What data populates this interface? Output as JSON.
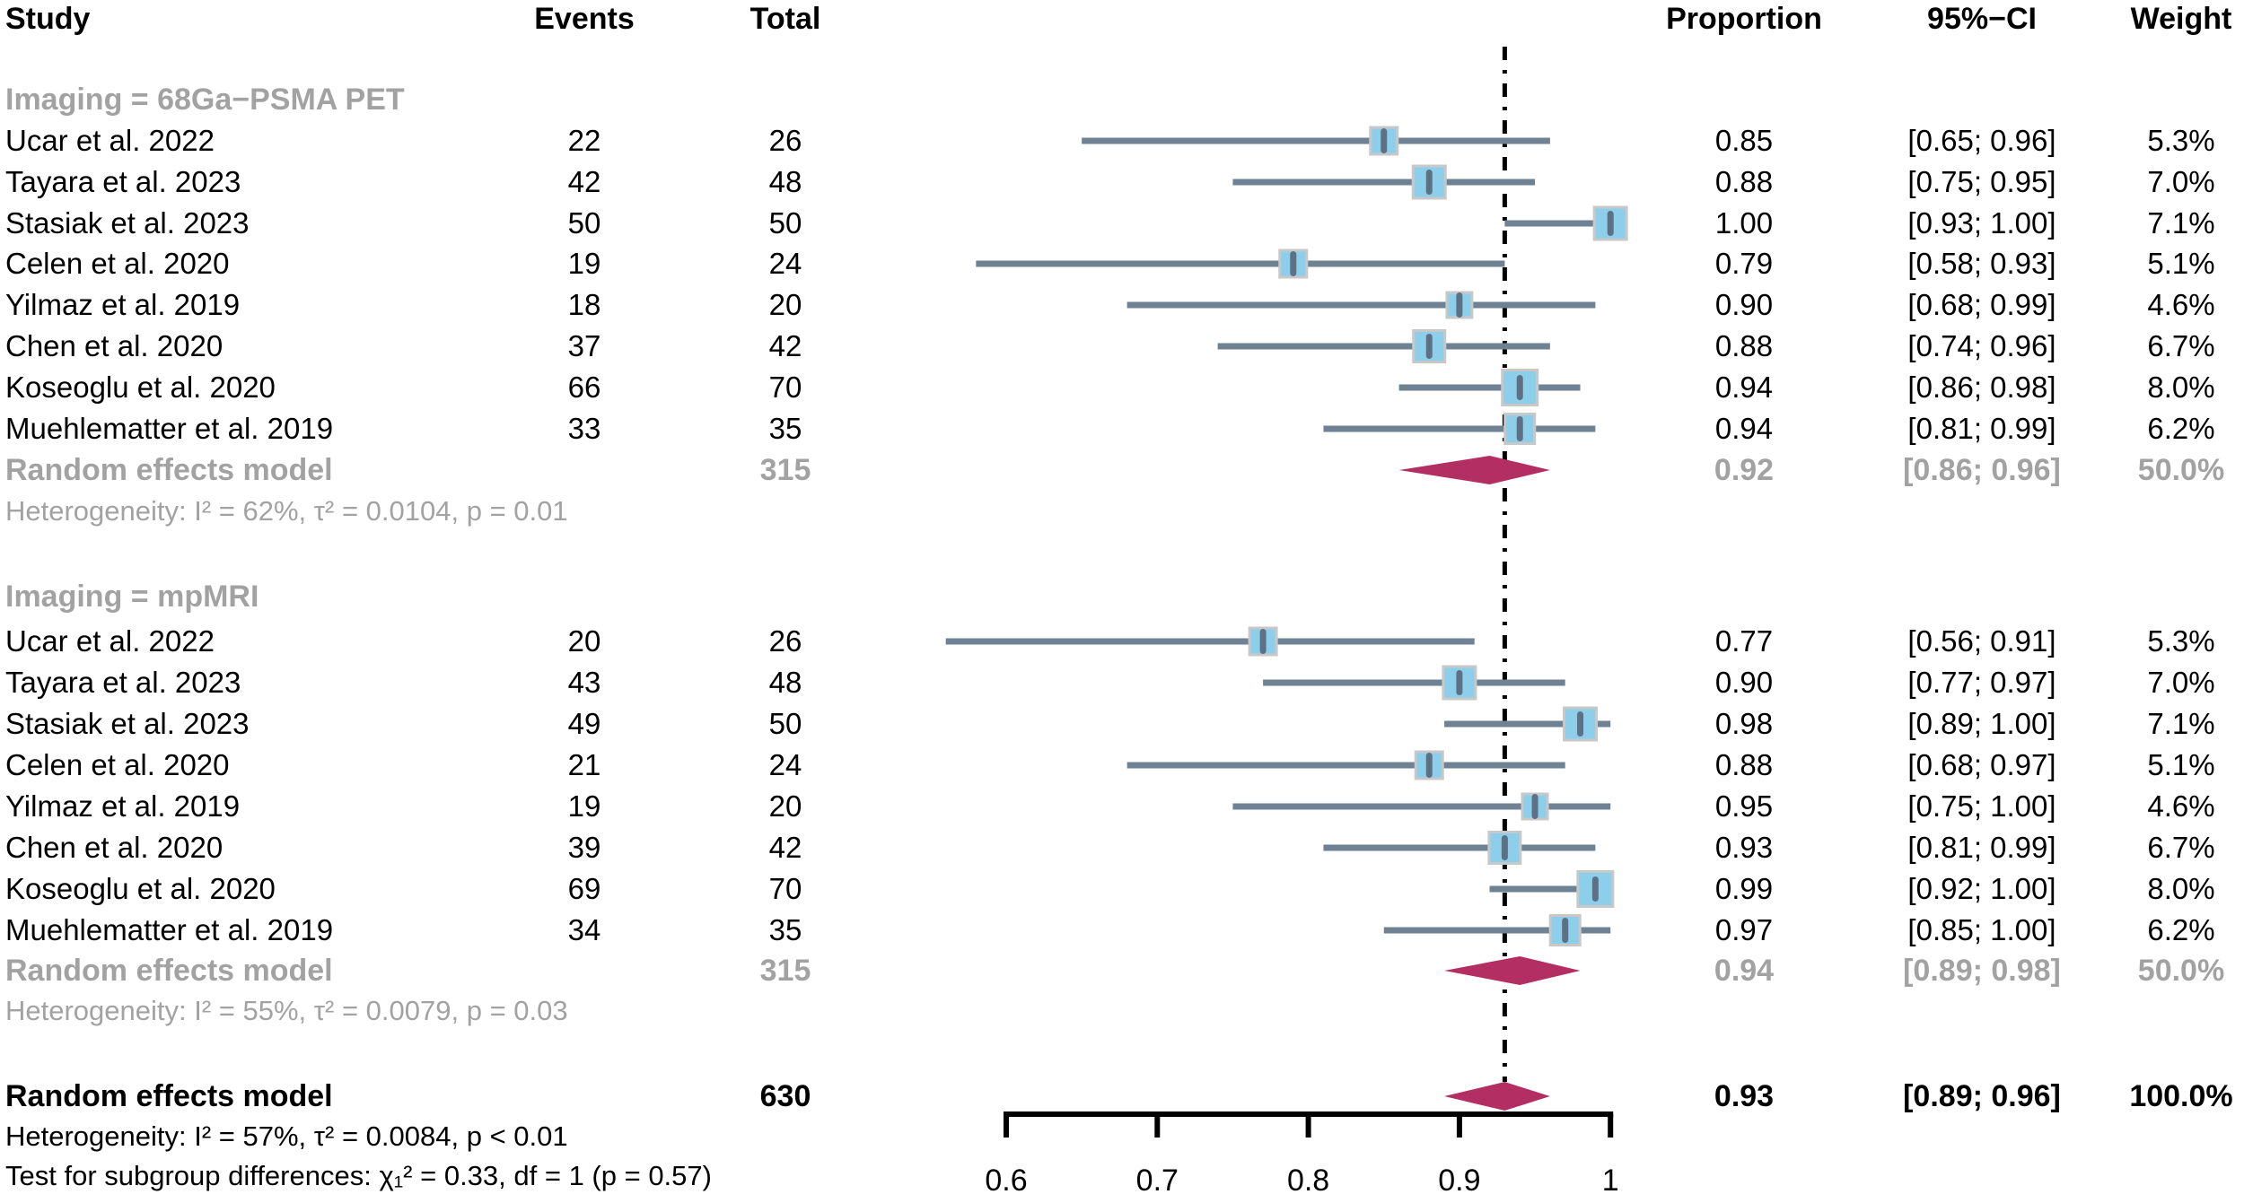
{
  "header": {
    "study": "Study",
    "events": "Events",
    "total": "Total",
    "proportion": "Proportion",
    "ci": "95%−CI",
    "weight": "Weight"
  },
  "colors": {
    "square_fill": "#8dceea",
    "square_border": "#c8c8c8",
    "ci_line": "#6f8294",
    "point_marker": "#5e7184",
    "diamond": "#b32e62",
    "null_line": "#000000",
    "axis": "#000000",
    "gray_text": "#a2a2a2",
    "black_text": "#000000"
  },
  "chart_data": {
    "type": "forest",
    "xlabel": "",
    "axis": {
      "range": [
        0.6,
        1.0
      ],
      "ticks": [
        0.6,
        0.7,
        0.8,
        0.9,
        1.0
      ],
      "tick_labels": [
        "0.6",
        "0.7",
        "0.8",
        "0.9",
        "1"
      ],
      "null_line_value": 0.93
    },
    "groups": [
      {
        "label": "Imaging = 68Ga−PSMA PET",
        "studies": [
          {
            "name": "Ucar et al. 2022",
            "events": "22",
            "total": "26",
            "prop": 0.85,
            "lo": 0.65,
            "hi": 0.96,
            "prop_text": "0.85",
            "ci_text": "[0.65; 0.96]",
            "weight": 5.3,
            "weight_text": "5.3%"
          },
          {
            "name": "Tayara et al. 2023",
            "events": "42",
            "total": "48",
            "prop": 0.88,
            "lo": 0.75,
            "hi": 0.95,
            "prop_text": "0.88",
            "ci_text": "[0.75; 0.95]",
            "weight": 7.0,
            "weight_text": "7.0%"
          },
          {
            "name": "Stasiak et al. 2023",
            "events": "50",
            "total": "50",
            "prop": 1.0,
            "lo": 0.93,
            "hi": 1.0,
            "prop_text": "1.00",
            "ci_text": "[0.93; 1.00]",
            "weight": 7.1,
            "weight_text": "7.1%"
          },
          {
            "name": "Celen et al. 2020",
            "events": "19",
            "total": "24",
            "prop": 0.79,
            "lo": 0.58,
            "hi": 0.93,
            "prop_text": "0.79",
            "ci_text": "[0.58; 0.93]",
            "weight": 5.1,
            "weight_text": "5.1%"
          },
          {
            "name": "Yilmaz et al. 2019",
            "events": "18",
            "total": "20",
            "prop": 0.9,
            "lo": 0.68,
            "hi": 0.99,
            "prop_text": "0.90",
            "ci_text": "[0.68; 0.99]",
            "weight": 4.6,
            "weight_text": "4.6%"
          },
          {
            "name": "Chen et al. 2020",
            "events": "37",
            "total": "42",
            "prop": 0.88,
            "lo": 0.74,
            "hi": 0.96,
            "prop_text": "0.88",
            "ci_text": "[0.74; 0.96]",
            "weight": 6.7,
            "weight_text": "6.7%"
          },
          {
            "name": "Koseoglu et al. 2020",
            "events": "66",
            "total": "70",
            "prop": 0.94,
            "lo": 0.86,
            "hi": 0.98,
            "prop_text": "0.94",
            "ci_text": "[0.86; 0.98]",
            "weight": 8.0,
            "weight_text": "8.0%"
          },
          {
            "name": "Muehlematter et al. 2019",
            "events": "33",
            "total": "35",
            "prop": 0.94,
            "lo": 0.81,
            "hi": 0.99,
            "prop_text": "0.94",
            "ci_text": "[0.81; 0.99]",
            "weight": 6.2,
            "weight_text": "6.2%"
          }
        ],
        "summary": {
          "label": "Random effects model",
          "total": "315",
          "prop": 0.92,
          "lo": 0.86,
          "hi": 0.96,
          "prop_text": "0.92",
          "ci_text": "[0.86; 0.96]",
          "weight_text": "50.0%"
        },
        "heterogeneity": "Heterogeneity: I² = 62%, τ² = 0.0104, p = 0.01"
      },
      {
        "label": "Imaging = mpMRI",
        "studies": [
          {
            "name": "Ucar et al. 2022",
            "events": "20",
            "total": "26",
            "prop": 0.77,
            "lo": 0.56,
            "hi": 0.91,
            "prop_text": "0.77",
            "ci_text": "[0.56; 0.91]",
            "weight": 5.3,
            "weight_text": "5.3%"
          },
          {
            "name": "Tayara et al. 2023",
            "events": "43",
            "total": "48",
            "prop": 0.9,
            "lo": 0.77,
            "hi": 0.97,
            "prop_text": "0.90",
            "ci_text": "[0.77; 0.97]",
            "weight": 7.0,
            "weight_text": "7.0%"
          },
          {
            "name": "Stasiak et al. 2023",
            "events": "49",
            "total": "50",
            "prop": 0.98,
            "lo": 0.89,
            "hi": 1.0,
            "prop_text": "0.98",
            "ci_text": "[0.89; 1.00]",
            "weight": 7.1,
            "weight_text": "7.1%"
          },
          {
            "name": "Celen et al. 2020",
            "events": "21",
            "total": "24",
            "prop": 0.88,
            "lo": 0.68,
            "hi": 0.97,
            "prop_text": "0.88",
            "ci_text": "[0.68; 0.97]",
            "weight": 5.1,
            "weight_text": "5.1%"
          },
          {
            "name": "Yilmaz et al. 2019",
            "events": "19",
            "total": "20",
            "prop": 0.95,
            "lo": 0.75,
            "hi": 1.0,
            "prop_text": "0.95",
            "ci_text": "[0.75; 1.00]",
            "weight": 4.6,
            "weight_text": "4.6%"
          },
          {
            "name": "Chen et al. 2020",
            "events": "39",
            "total": "42",
            "prop": 0.93,
            "lo": 0.81,
            "hi": 0.99,
            "prop_text": "0.93",
            "ci_text": "[0.81; 0.99]",
            "weight": 6.7,
            "weight_text": "6.7%"
          },
          {
            "name": "Koseoglu et al. 2020",
            "events": "69",
            "total": "70",
            "prop": 0.99,
            "lo": 0.92,
            "hi": 1.0,
            "prop_text": "0.99",
            "ci_text": "[0.92; 1.00]",
            "weight": 8.0,
            "weight_text": "8.0%"
          },
          {
            "name": "Muehlematter et al. 2019",
            "events": "34",
            "total": "35",
            "prop": 0.97,
            "lo": 0.85,
            "hi": 1.0,
            "prop_text": "0.97",
            "ci_text": "[0.85; 1.00]",
            "weight": 6.2,
            "weight_text": "6.2%"
          }
        ],
        "summary": {
          "label": "Random effects model",
          "total": "315",
          "prop": 0.94,
          "lo": 0.89,
          "hi": 0.98,
          "prop_text": "0.94",
          "ci_text": "[0.89; 0.98]",
          "weight_text": "50.0%"
        },
        "heterogeneity": "Heterogeneity: I² = 55%, τ² = 0.0079, p = 0.03"
      }
    ],
    "overall": {
      "label": "Random effects model",
      "total": "630",
      "prop": 0.93,
      "lo": 0.89,
      "hi": 0.96,
      "prop_text": "0.93",
      "ci_text": "[0.89; 0.96]",
      "weight_text": "100.0%",
      "heterogeneity": "Heterogeneity: I² = 57%, τ² = 0.0084, p < 0.01",
      "subgroup_test": "Test for subgroup differences: χ₁² = 0.33, df = 1 (p = 0.57)"
    }
  }
}
